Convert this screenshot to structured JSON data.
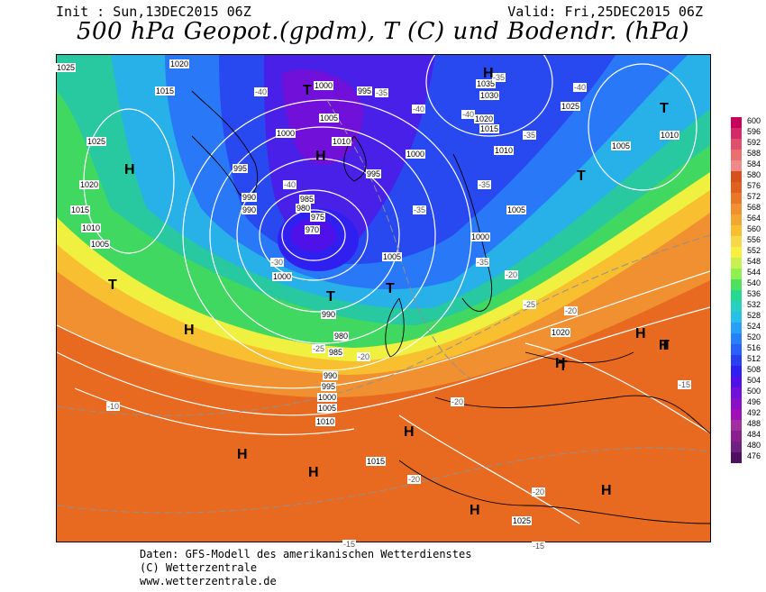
{
  "header": {
    "init": "Init : Sun,13DEC2015 06Z",
    "valid": "Valid: Fri,25DEC2015 06Z",
    "title": "500 hPa Geopot.(gpdm), T (C) und Bodendr. (hPa)"
  },
  "legend": {
    "values": [
      "600",
      "596",
      "592",
      "588",
      "584",
      "580",
      "576",
      "572",
      "568",
      "564",
      "560",
      "556",
      "552",
      "548",
      "544",
      "540",
      "536",
      "532",
      "528",
      "524",
      "520",
      "516",
      "512",
      "508",
      "504",
      "500",
      "496",
      "492",
      "488",
      "484",
      "480",
      "476"
    ],
    "colors": [
      "#c8005a",
      "#d42a6a",
      "#e0506e",
      "#e87070",
      "#f08a8a",
      "#d8501a",
      "#e06020",
      "#e87828",
      "#f09030",
      "#f0a830",
      "#f8c030",
      "#f8d848",
      "#f8f040",
      "#c8f050",
      "#90f050",
      "#50e060",
      "#28d890",
      "#28d0c0",
      "#28c0e8",
      "#28a0f8",
      "#2880f8",
      "#2860f8",
      "#2840f0",
      "#3020f0",
      "#5010e8",
      "#7010d8",
      "#8a10c8",
      "#a010b8",
      "#a030a0",
      "#8a2090",
      "#702080",
      "#501060"
    ]
  },
  "pressure_labels": [
    "1020",
    "1015",
    "1025",
    "1020",
    "1015",
    "1010",
    "1005",
    "1000",
    "995",
    "990",
    "990",
    "985",
    "980",
    "975",
    "970",
    "1000",
    "1005",
    "1010",
    "995",
    "1000",
    "995",
    "1005",
    "1000",
    "1035",
    "1030",
    "1020",
    "1015",
    "1025",
    "1010",
    "1005",
    "1010",
    "1005",
    "1000",
    "990",
    "980",
    "985",
    "990",
    "995",
    "1000",
    "1005",
    "1010",
    "1015",
    "1020",
    "1025",
    "1025",
    "1025",
    "1035"
  ],
  "temp_labels": [
    "-40",
    "-35",
    "-40",
    "-40",
    "-35",
    "-40",
    "-35",
    "-35",
    "-30",
    "-35",
    "-25",
    "-20",
    "-20",
    "-25",
    "-20",
    "-20",
    "-15",
    "-10",
    "-15",
    "-20",
    "-20",
    "-15",
    "-40",
    "-35"
  ],
  "high_markers": [
    "H",
    "H",
    "H",
    "H",
    "H",
    "H",
    "H",
    "H",
    "H",
    "H",
    "H",
    "H"
  ],
  "low_markers": [
    "T",
    "T",
    "T",
    "T",
    "T",
    "T",
    "T",
    "T"
  ],
  "footer": {
    "line1": "Daten: GFS-Modell des amerikanischen Wetterdienstes",
    "line2": "(C) Wetterzentrale",
    "line3": "www.wetterzentrale.de"
  }
}
